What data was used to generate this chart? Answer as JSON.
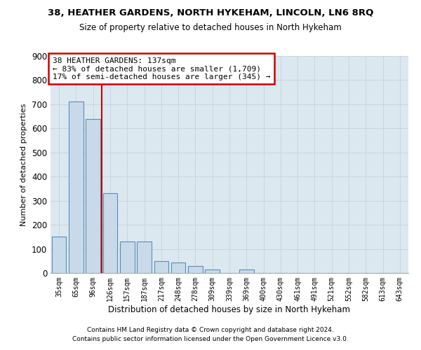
{
  "title": "38, HEATHER GARDENS, NORTH HYKEHAM, LINCOLN, LN6 8RQ",
  "subtitle": "Size of property relative to detached houses in North Hykeham",
  "xlabel": "Distribution of detached houses by size in North Hykeham",
  "ylabel": "Number of detached properties",
  "categories": [
    "35sqm",
    "65sqm",
    "96sqm",
    "126sqm",
    "157sqm",
    "187sqm",
    "217sqm",
    "248sqm",
    "278sqm",
    "309sqm",
    "339sqm",
    "369sqm",
    "400sqm",
    "430sqm",
    "461sqm",
    "491sqm",
    "521sqm",
    "552sqm",
    "582sqm",
    "613sqm",
    "643sqm"
  ],
  "values": [
    150,
    710,
    640,
    330,
    130,
    130,
    50,
    45,
    30,
    15,
    0,
    15,
    0,
    0,
    0,
    0,
    0,
    0,
    0,
    0,
    0
  ],
  "bar_color": "#c8daea",
  "bar_edge_color": "#5a8db5",
  "bar_linewidth": 0.8,
  "grid_color": "#c8d4e0",
  "bg_color": "#dce8f0",
  "redline_x": 2.5,
  "annotation_text": "38 HEATHER GARDENS: 137sqm\n← 83% of detached houses are smaller (1,709)\n17% of semi-detached houses are larger (345) →",
  "annotation_box_color": "#ffffff",
  "annotation_box_edgecolor": "#cc0000",
  "ylim": [
    0,
    900
  ],
  "yticks": [
    0,
    100,
    200,
    300,
    400,
    500,
    600,
    700,
    800,
    900
  ],
  "footer1": "Contains HM Land Registry data © Crown copyright and database right 2024.",
  "footer2": "Contains public sector information licensed under the Open Government Licence v3.0."
}
